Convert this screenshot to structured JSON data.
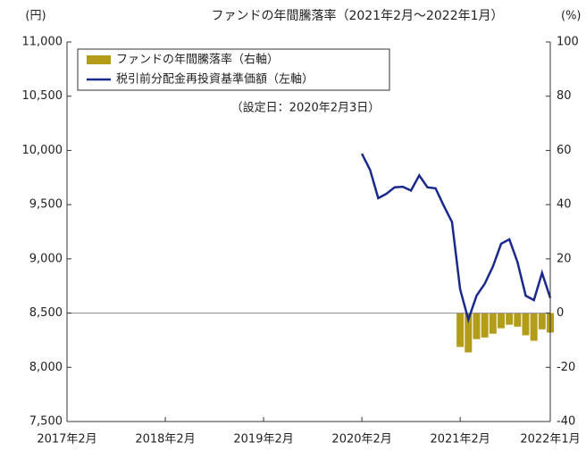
{
  "chart_data": {
    "type": "bar-line",
    "title": "ファンドの年間騰落率（2021年2月～2022年1月）",
    "y_label": "(円)",
    "y2_label": "(%)",
    "annotation": "（設定日：2020年2月3日）",
    "xlim": [
      "2017-02",
      "2022-01"
    ],
    "xticks": [
      {
        "value": "2017-02",
        "label": "2017年2月"
      },
      {
        "value": "2018-02",
        "label": "2018年2月"
      },
      {
        "value": "2019-02",
        "label": "2019年2月"
      },
      {
        "value": "2020-02",
        "label": "2020年2月"
      },
      {
        "value": "2021-02",
        "label": "2021年2月"
      },
      {
        "value": "2022-01",
        "label": "2022年1月"
      }
    ],
    "ylim": [
      7500,
      11000
    ],
    "yticks": [
      {
        "value": 7500,
        "label": "7,500"
      },
      {
        "value": 8000,
        "label": "8,000"
      },
      {
        "value": 8500,
        "label": "8,500"
      },
      {
        "value": 9000,
        "label": "9,000"
      },
      {
        "value": 9500,
        "label": "9,500"
      },
      {
        "value": 10000,
        "label": "10,000"
      },
      {
        "value": 10500,
        "label": "10,500"
      },
      {
        "value": 11000,
        "label": "11,000"
      }
    ],
    "y2lim": [
      -40,
      100
    ],
    "y2ticks": [
      -40,
      -20,
      0,
      20,
      40,
      60,
      80,
      100
    ],
    "series": [
      {
        "name": "ファンドの年間騰落率（右軸）",
        "type": "bar",
        "axis": "y2",
        "color": "#b39c17",
        "x": [
          "2021-02",
          "2021-03",
          "2021-04",
          "2021-05",
          "2021-06",
          "2021-07",
          "2021-08",
          "2021-09",
          "2021-10",
          "2021-11",
          "2021-12",
          "2022-01"
        ],
        "values": [
          -12.5,
          -14.5,
          -9.6,
          -9,
          -7.6,
          -5.6,
          -4.3,
          -5,
          -8.2,
          -10.2,
          -6,
          -7.2
        ]
      },
      {
        "name": "税引前分配金再投資基準価額（左軸）",
        "type": "line",
        "axis": "y",
        "color": "#1a2a8c",
        "x": [
          "2020-02",
          "2020-03",
          "2020-04",
          "2020-05",
          "2020-06",
          "2020-07",
          "2020-08",
          "2020-09",
          "2020-10",
          "2020-11",
          "2020-12",
          "2021-01",
          "2021-02",
          "2021-03",
          "2021-04",
          "2021-05",
          "2021-06",
          "2021-07",
          "2021-08",
          "2021-09",
          "2021-10",
          "2021-11",
          "2021-12",
          "2022-01"
        ],
        "values": [
          9970,
          9820,
          9560,
          9600,
          9660,
          9665,
          9630,
          9770,
          9660,
          9650,
          9490,
          9340,
          8720,
          8440,
          8660,
          8770,
          8930,
          9140,
          9180,
          8970,
          8660,
          8620,
          8870,
          8640
        ]
      }
    ]
  }
}
